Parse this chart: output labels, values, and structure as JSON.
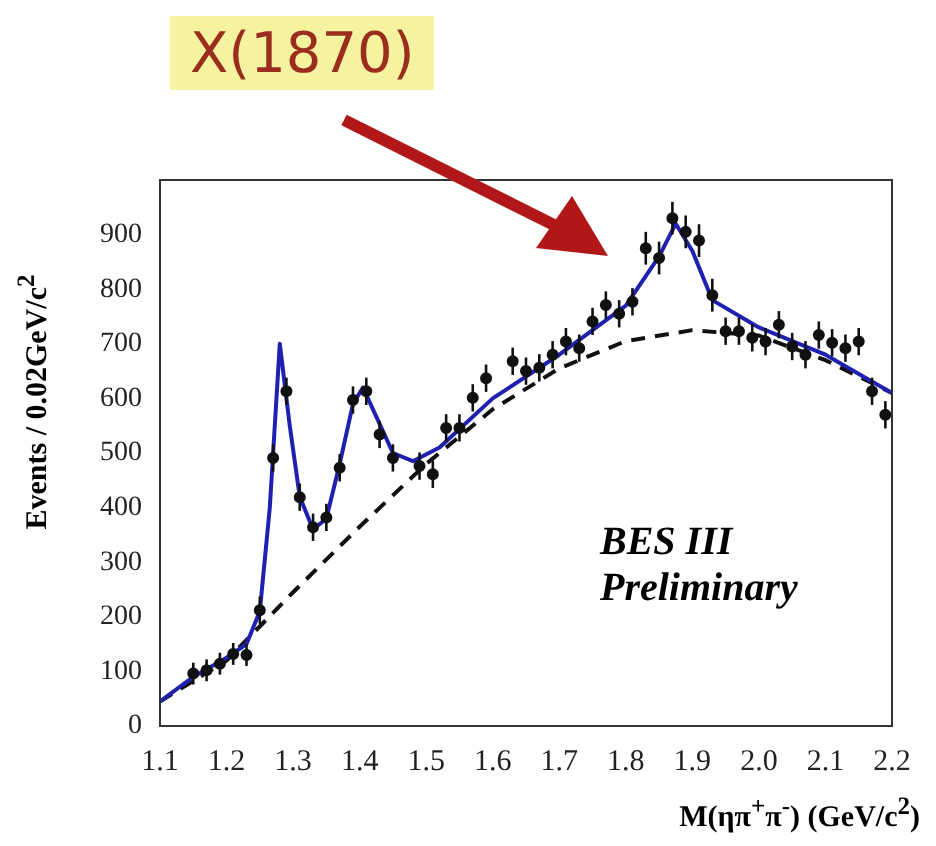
{
  "chart_data": {
    "type": "scatter",
    "xlabel": "M(ηπ$^{+}$π$^{-}$) (GeV/c$^{2}$)",
    "ylabel": "Events / 0.02GeV/c$^{2}$",
    "xlim": [
      1.1,
      2.2
    ],
    "xticks": [
      1.1,
      1.2,
      1.3,
      1.4,
      1.5,
      1.6,
      1.7,
      1.8,
      1.9,
      {
        "value": 2,
        "label": "2.0"
      },
      2.1,
      2.2
    ],
    "ylim": [
      0,
      1000
    ],
    "yticks": [
      0,
      100,
      200,
      300,
      400,
      500,
      600,
      700,
      800,
      900
    ],
    "grid": false,
    "legend": false,
    "annotations": [
      "X(1870)",
      "BES III",
      "Preliminary"
    ],
    "series": [
      {
        "color": "#111111",
        "marker": "circle",
        "x": [
          1.15,
          1.17,
          1.19,
          1.21,
          1.23,
          1.25,
          1.27,
          1.29,
          1.31,
          1.33,
          1.35,
          1.37,
          1.39,
          1.41,
          1.43,
          1.45,
          1.49,
          1.51,
          1.53,
          1.55,
          1.57,
          1.59,
          1.63,
          1.65,
          1.67,
          1.69,
          1.71,
          1.73,
          1.75,
          1.77,
          1.79,
          1.81,
          1.83,
          1.85,
          1.87,
          1.89,
          1.91,
          1.93,
          1.95,
          1.97,
          1.99,
          2.01,
          2.03,
          2.05,
          2.07,
          2.09,
          2.11,
          2.13,
          2.15,
          2.17,
          2.19
        ],
        "values": [
          96,
          102,
          114,
          132,
          130,
          212,
          491,
          613,
          419,
          364,
          382,
          473,
          597,
          613,
          534,
          491,
          476,
          461,
          546,
          546,
          601,
          637,
          668,
          650,
          656,
          680,
          704,
          692,
          741,
          771,
          755,
          777,
          875,
          857,
          930,
          905,
          889,
          789,
          723,
          723,
          711,
          704,
          735,
          695,
          680,
          716,
          702,
          692,
          704,
          613,
          570
        ],
        "errors": [
          20,
          20,
          20,
          20,
          20,
          25,
          25,
          25,
          25,
          25,
          25,
          25,
          25,
          25,
          25,
          25,
          25,
          25,
          25,
          25,
          25,
          25,
          25,
          25,
          25,
          25,
          25,
          25,
          25,
          25,
          25,
          25,
          30,
          30,
          30,
          30,
          30,
          30,
          25,
          25,
          25,
          25,
          25,
          25,
          25,
          25,
          25,
          25,
          25,
          25,
          25
        ]
      },
      {
        "type": "line",
        "color": "#2020b0",
        "marker": "none",
        "line_style": "solid",
        "x": [
          1.1,
          1.15,
          1.2,
          1.23,
          1.25,
          1.265,
          1.28,
          1.295,
          1.31,
          1.33,
          1.35,
          1.37,
          1.39,
          1.405,
          1.42,
          1.45,
          1.48,
          1.52,
          1.6,
          1.7,
          1.8,
          1.85,
          1.875,
          1.9,
          1.93,
          2.0,
          2.1,
          2.2
        ],
        "values": [
          45,
          90,
          125,
          150,
          210,
          400,
          700,
          550,
          420,
          360,
          380,
          480,
          590,
          620,
          580,
          500,
          485,
          510,
          600,
          680,
          770,
          860,
          920,
          870,
          780,
          730,
          680,
          610
        ]
      },
      {
        "type": "line",
        "color": "#111111",
        "marker": "none",
        "line_style": "dashed",
        "x": [
          1.1,
          1.2,
          1.3,
          1.4,
          1.5,
          1.6,
          1.7,
          1.8,
          1.9,
          2.0,
          2.1,
          2.2
        ],
        "values": [
          45,
          120,
          245,
          365,
          480,
          580,
          655,
          705,
          725,
          715,
          670,
          610
        ]
      }
    ]
  }
}
